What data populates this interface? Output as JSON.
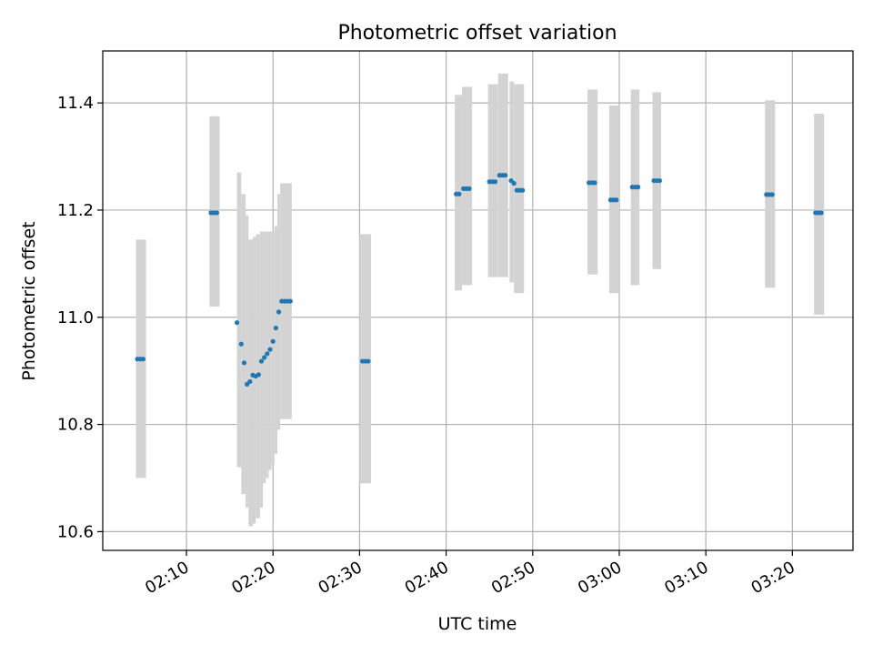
{
  "chart_data": {
    "type": "scatter",
    "title": "Photometric offset variation",
    "xlabel": "UTC time",
    "ylabel": "Photometric offset",
    "xlim": [
      "02:00:20",
      "03:27:00"
    ],
    "ylim": [
      10.565,
      11.497
    ],
    "xticks": [
      "02:10",
      "02:20",
      "02:30",
      "02:40",
      "02:50",
      "03:00",
      "03:10",
      "03:20"
    ],
    "yticks": [
      "10.6",
      "10.8",
      "11.0",
      "11.2",
      "11.4"
    ],
    "grid": true,
    "colors": {
      "points": "#1f77b4",
      "bands": "#d3d3d3",
      "grid": "#b0b0b0",
      "axes": "#000000"
    },
    "bands": [
      {
        "x_start": "02:04:10",
        "x_end": "02:05:20",
        "y_low": 10.7,
        "y_high": 11.145
      },
      {
        "x_start": "02:12:40",
        "x_end": "02:13:50",
        "y_low": 11.02,
        "y_high": 11.375
      },
      {
        "x_start": "02:15:50",
        "x_end": "02:16:20",
        "y_low": 10.72,
        "y_high": 11.27
      },
      {
        "x_start": "02:16:20",
        "x_end": "02:16:50",
        "y_low": 10.67,
        "y_high": 11.23
      },
      {
        "x_start": "02:16:50",
        "x_end": "02:17:10",
        "y_low": 10.645,
        "y_high": 11.19
      },
      {
        "x_start": "02:17:10",
        "x_end": "02:17:40",
        "y_low": 10.61,
        "y_high": 11.145
      },
      {
        "x_start": "02:17:40",
        "x_end": "02:18:00",
        "y_low": 10.615,
        "y_high": 11.15
      },
      {
        "x_start": "02:18:00",
        "x_end": "02:18:30",
        "y_low": 10.625,
        "y_high": 11.155
      },
      {
        "x_start": "02:18:30",
        "x_end": "02:18:50",
        "y_low": 10.645,
        "y_high": 11.16
      },
      {
        "x_start": "02:18:50",
        "x_end": "02:19:10",
        "y_low": 10.69,
        "y_high": 11.16
      },
      {
        "x_start": "02:19:10",
        "x_end": "02:19:30",
        "y_low": 10.7,
        "y_high": 11.16
      },
      {
        "x_start": "02:19:30",
        "x_end": "02:19:50",
        "y_low": 10.715,
        "y_high": 11.16
      },
      {
        "x_start": "02:19:50",
        "x_end": "02:20:10",
        "y_low": 10.725,
        "y_high": 11.16
      },
      {
        "x_start": "02:20:10",
        "x_end": "02:20:30",
        "y_low": 10.745,
        "y_high": 11.17
      },
      {
        "x_start": "02:20:30",
        "x_end": "02:20:50",
        "y_low": 10.79,
        "y_high": 11.23
      },
      {
        "x_start": "02:20:50",
        "x_end": "02:22:10",
        "y_low": 10.81,
        "y_high": 11.25
      },
      {
        "x_start": "02:30:00",
        "x_end": "02:31:20",
        "y_low": 10.69,
        "y_high": 11.155
      },
      {
        "x_start": "02:41:00",
        "x_end": "02:41:50",
        "y_low": 11.05,
        "y_high": 11.415
      },
      {
        "x_start": "02:41:50",
        "x_end": "02:43:00",
        "y_low": 11.06,
        "y_high": 11.43
      },
      {
        "x_start": "02:44:50",
        "x_end": "02:46:00",
        "y_low": 11.075,
        "y_high": 11.435
      },
      {
        "x_start": "02:46:00",
        "x_end": "02:47:10",
        "y_low": 11.075,
        "y_high": 11.455
      },
      {
        "x_start": "02:47:20",
        "x_end": "02:47:50",
        "y_low": 11.065,
        "y_high": 11.44
      },
      {
        "x_start": "02:47:50",
        "x_end": "02:49:00",
        "y_low": 11.045,
        "y_high": 11.435
      },
      {
        "x_start": "02:56:20",
        "x_end": "02:57:30",
        "y_low": 11.08,
        "y_high": 11.425
      },
      {
        "x_start": "02:58:50",
        "x_end": "03:00:00",
        "y_low": 11.045,
        "y_high": 11.395
      },
      {
        "x_start": "03:01:20",
        "x_end": "03:02:20",
        "y_low": 11.06,
        "y_high": 11.425
      },
      {
        "x_start": "03:03:50",
        "x_end": "03:04:50",
        "y_low": 11.09,
        "y_high": 11.42
      },
      {
        "x_start": "03:16:50",
        "x_end": "03:18:00",
        "y_low": 11.055,
        "y_high": 11.405
      },
      {
        "x_start": "03:22:30",
        "x_end": "03:23:40",
        "y_low": 11.005,
        "y_high": 11.38
      }
    ],
    "series": [
      {
        "x": [
          "02:04:20",
          "02:04:40",
          "02:05:00",
          "02:12:50",
          "02:13:10",
          "02:13:30",
          "02:15:50",
          "02:16:20",
          "02:16:40",
          "02:17:00",
          "02:17:20",
          "02:17:40",
          "02:18:00",
          "02:18:20",
          "02:18:40",
          "02:19:00",
          "02:19:20",
          "02:19:40",
          "02:20:00",
          "02:20:20",
          "02:20:40",
          "02:21:00",
          "02:21:20",
          "02:21:40",
          "02:22:00",
          "02:30:20",
          "02:30:40",
          "02:31:00",
          "02:41:10",
          "02:41:30",
          "02:42:00",
          "02:42:20",
          "02:42:40",
          "02:45:00",
          "02:45:20",
          "02:45:40",
          "02:46:10",
          "02:46:30",
          "02:46:50",
          "02:47:30",
          "02:47:50",
          "02:48:10",
          "02:48:30",
          "02:48:50",
          "02:56:30",
          "02:56:50",
          "02:57:10",
          "02:59:00",
          "02:59:20",
          "02:59:40",
          "03:01:30",
          "03:01:50",
          "03:02:10",
          "03:04:00",
          "03:04:20",
          "03:04:40",
          "03:17:00",
          "03:17:20",
          "03:17:40",
          "03:22:40",
          "03:23:00",
          "03:23:20"
        ],
        "y": [
          10.922,
          10.922,
          10.922,
          11.195,
          11.195,
          11.195,
          10.99,
          10.95,
          10.915,
          10.875,
          10.88,
          10.892,
          10.89,
          10.893,
          10.918,
          10.925,
          10.932,
          10.94,
          10.955,
          10.98,
          11.01,
          11.03,
          11.03,
          11.03,
          11.03,
          10.918,
          10.918,
          10.918,
          11.23,
          11.23,
          11.24,
          11.24,
          11.24,
          11.253,
          11.253,
          11.253,
          11.265,
          11.265,
          11.265,
          11.255,
          11.25,
          11.237,
          11.237,
          11.237,
          11.251,
          11.251,
          11.251,
          11.219,
          11.219,
          11.219,
          11.243,
          11.243,
          11.243,
          11.255,
          11.255,
          11.255,
          11.229,
          11.229,
          11.229,
          11.195,
          11.195,
          11.195
        ]
      }
    ]
  }
}
